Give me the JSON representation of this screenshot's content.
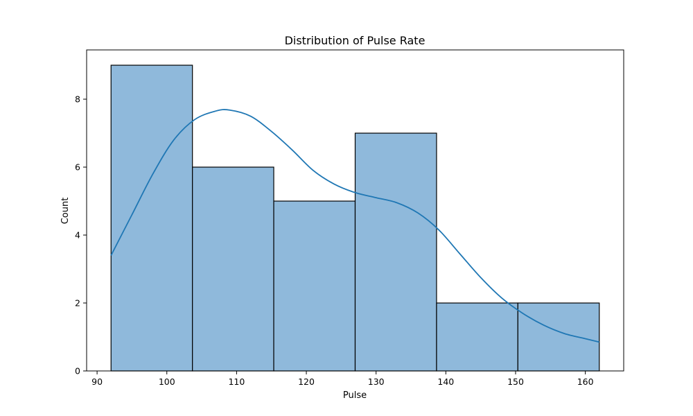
{
  "chart_data": {
    "type": "bar",
    "subtype": "histogram",
    "title": "Distribution of Pulse Rate",
    "xlabel": "Pulse",
    "ylabel": "Count",
    "xlim": [
      88.5,
      165.5
    ],
    "ylim": [
      0,
      9.45
    ],
    "xticks": [
      90,
      100,
      110,
      120,
      130,
      140,
      150,
      160
    ],
    "yticks": [
      0,
      2,
      4,
      6,
      8
    ],
    "bins": [
      {
        "start": 92.0,
        "end": 103.67,
        "count": 9
      },
      {
        "start": 103.67,
        "end": 115.33,
        "count": 6
      },
      {
        "start": 115.33,
        "end": 127.0,
        "count": 5
      },
      {
        "start": 127.0,
        "end": 138.67,
        "count": 7
      },
      {
        "start": 138.67,
        "end": 150.33,
        "count": 2
      },
      {
        "start": 150.33,
        "end": 162.0,
        "count": 2
      }
    ],
    "kde": {
      "x": [
        92,
        95,
        98,
        101,
        104,
        107,
        109,
        112,
        115,
        118,
        121,
        124,
        127,
        130,
        133,
        136,
        139,
        142,
        145,
        148,
        151,
        154,
        157,
        160,
        162
      ],
      "y": [
        3.4,
        4.6,
        5.8,
        6.8,
        7.4,
        7.65,
        7.68,
        7.5,
        7.05,
        6.5,
        5.9,
        5.5,
        5.25,
        5.1,
        4.95,
        4.65,
        4.15,
        3.45,
        2.75,
        2.15,
        1.7,
        1.35,
        1.1,
        0.95,
        0.85
      ]
    },
    "grid": false,
    "colors": {
      "bar_fill": "#8fb9db",
      "bar_edge": "#000000",
      "kde_line": "#1f77b4"
    }
  }
}
